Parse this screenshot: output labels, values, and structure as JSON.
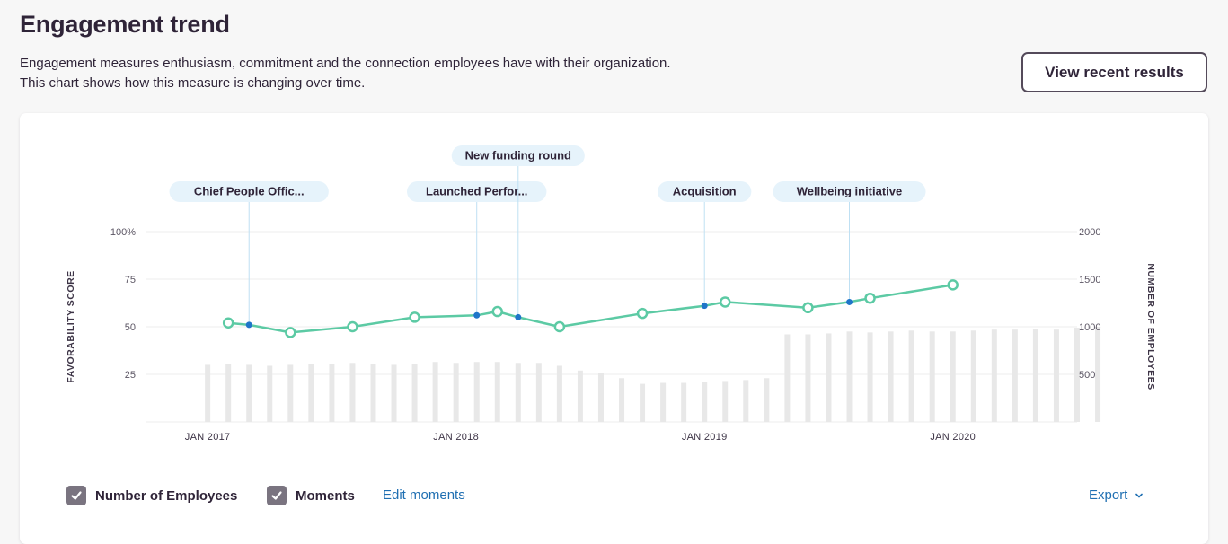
{
  "header": {
    "title": "Engagement trend",
    "description_line1": "Engagement measures enthusiasm, commitment and the connection employees have with their organization.",
    "description_line2": "This chart shows how this measure is changing over time.",
    "view_button": "View recent results"
  },
  "footer": {
    "employees_toggle": "Number of Employees",
    "moments_toggle": "Moments",
    "edit_moments": "Edit moments",
    "export": "Export"
  },
  "colors": {
    "line": "#5ccaa4",
    "moment_dot": "#1f75c9",
    "bar": "#e8e8e8",
    "moment_pill": "#e6f3fb",
    "moment_line": "#bfe0f3",
    "link": "#1f6fb2"
  },
  "chart_data": {
    "type": "line",
    "x_axis": {
      "tick_labels": [
        "JAN 2017",
        "JAN 2018",
        "JAN 2019",
        "JAN 2020"
      ],
      "range": [
        "2016-10",
        "2020-07"
      ]
    },
    "y_left": {
      "label": "FAVORABILITY SCORE",
      "ticks": [
        "100%",
        "75",
        "50",
        "25"
      ],
      "range": [
        0,
        100
      ]
    },
    "y_right": {
      "label": "NUMBER OF EMPLOYEES",
      "ticks": [
        "2000",
        "1500",
        "1000",
        "500"
      ],
      "range": [
        0,
        2000
      ]
    },
    "grid": true,
    "favorability": [
      {
        "date": "2017-02",
        "value": 52
      },
      {
        "date": "2017-05",
        "value": 47
      },
      {
        "date": "2017-08",
        "value": 50
      },
      {
        "date": "2017-11",
        "value": 55
      },
      {
        "date": "2018-03",
        "value": 58
      },
      {
        "date": "2018-06",
        "value": 50
      },
      {
        "date": "2018-10",
        "value": 57
      },
      {
        "date": "2019-02",
        "value": 63
      },
      {
        "date": "2019-06",
        "value": 60
      },
      {
        "date": "2019-09",
        "value": 65
      },
      {
        "date": "2020-01",
        "value": 72
      }
    ],
    "moments": [
      {
        "date": "2017-03",
        "label": "Chief People Offic...",
        "value": 51
      },
      {
        "date": "2018-02",
        "label": "Launched Perfor...",
        "value": 56
      },
      {
        "date": "2018-04",
        "label": "New funding round",
        "value": 55
      },
      {
        "date": "2019-01",
        "label": "Acquisition",
        "value": 61
      },
      {
        "date": "2019-08",
        "label": "Wellbeing initiative",
        "value": 63
      }
    ],
    "employees": {
      "start_month": "2017-01",
      "values": [
        600,
        610,
        600,
        590,
        600,
        610,
        610,
        620,
        610,
        600,
        610,
        630,
        620,
        630,
        630,
        620,
        620,
        590,
        540,
        510,
        460,
        400,
        410,
        410,
        420,
        430,
        440,
        460,
        920,
        920,
        930,
        950,
        940,
        950,
        960,
        950,
        950,
        960,
        970,
        970,
        980,
        970,
        990,
        1000
      ]
    }
  }
}
